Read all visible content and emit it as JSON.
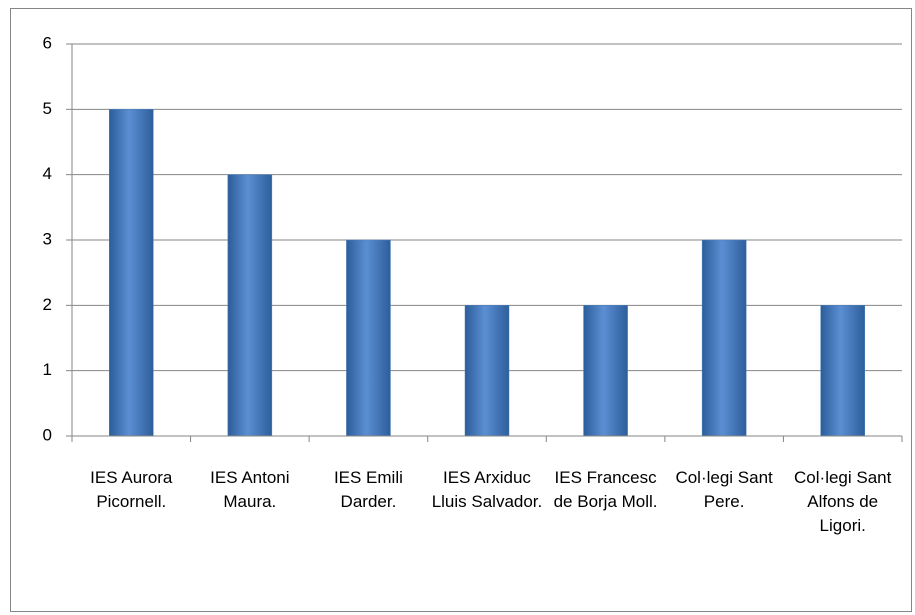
{
  "chart_data": {
    "type": "bar",
    "categories": [
      "IES Aurora Picornell.",
      "IES Antoni Maura.",
      "IES Emili Darder.",
      "IES Arxiduc Lluis Salvador.",
      "IES Francesc de Borja Moll.",
      "Col·legi Sant Pere.",
      "Col·legi Sant Alfons de Ligori."
    ],
    "values": [
      5,
      4,
      3,
      2,
      2,
      3,
      2
    ],
    "color": "#4a7ebb",
    "ylim": [
      0,
      6
    ],
    "yticks": [
      0,
      1,
      2,
      3,
      4,
      5,
      6
    ],
    "grid": true
  }
}
